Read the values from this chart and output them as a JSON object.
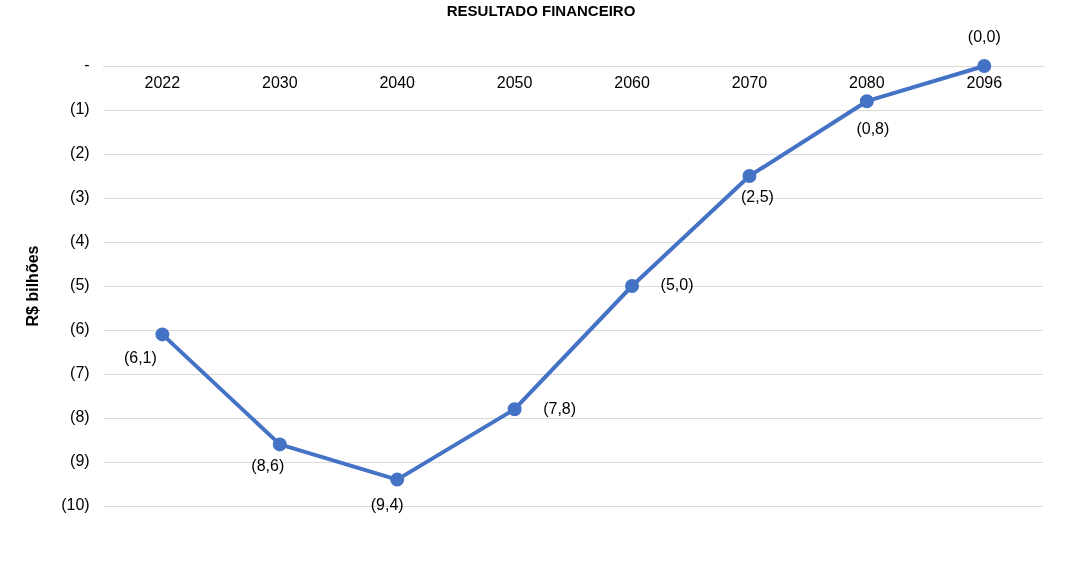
{
  "chart_data": {
    "type": "line",
    "title": "RESULTADO FINANCEIRO",
    "ylabel": "R$ bilhões",
    "categories": [
      "2022",
      "2030",
      "2040",
      "2050",
      "2060",
      "2070",
      "2080",
      "2096"
    ],
    "series": [
      {
        "color": "#4472c4",
        "values": [
          -6.1,
          -8.6,
          -9.4,
          -7.8,
          -5.0,
          -2.5,
          -0.8,
          0.0
        ],
        "value_labels": [
          "(6,1)",
          "(8,6)",
          "(9,4)",
          "(7,8)",
          "(5,0)",
          "(2,5)",
          "(0,8)",
          "(0,0)"
        ]
      }
    ],
    "ylim": [
      -10,
      0
    ],
    "yticks": [
      {
        "value": 0,
        "label": "-"
      },
      {
        "value": -1,
        "label": "(1)"
      },
      {
        "value": -2,
        "label": "(2)"
      },
      {
        "value": -3,
        "label": "(3)"
      },
      {
        "value": -4,
        "label": "(4)"
      },
      {
        "value": -5,
        "label": "(5)"
      },
      {
        "value": -6,
        "label": "(6)"
      },
      {
        "value": -7,
        "label": "(7)"
      },
      {
        "value": -8,
        "label": "(8)"
      },
      {
        "value": -9,
        "label": "(9)"
      },
      {
        "value": -10,
        "label": "(10)"
      }
    ],
    "grid": "y",
    "legend": false,
    "marker": "circle",
    "line_style": "solid"
  }
}
